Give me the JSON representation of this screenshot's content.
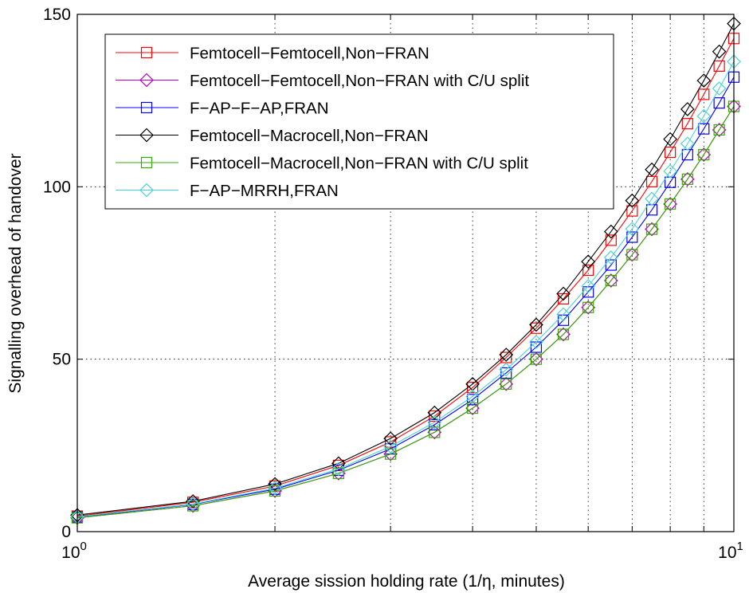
{
  "chart_data": {
    "type": "line",
    "title": "",
    "xlabel": "Average sission holding rate (1/η, minutes)",
    "ylabel": "Signalling overhead of handover",
    "x_scale": "log",
    "xlim": [
      1,
      10
    ],
    "ylim": [
      0,
      150
    ],
    "x_tick_labels": [
      {
        "base": "10",
        "exp": "0"
      },
      {
        "base": "10",
        "exp": "1"
      }
    ],
    "y_ticks": [
      0,
      50,
      100,
      150
    ],
    "y_tick_labels": [
      "0",
      "50",
      "100",
      "150"
    ],
    "grid": true,
    "legend_position": "top-left",
    "x": [
      1,
      1.5,
      2,
      2.5,
      3,
      3.5,
      4,
      4.5,
      5,
      5.5,
      6,
      6.5,
      7,
      7.5,
      8,
      8.5,
      9,
      9.5,
      10
    ],
    "series": [
      {
        "name": "Femtocell−Femtocell,Non−FRAN",
        "color": "#ff0000",
        "marker": "square",
        "values": [
          4.5,
          8.5,
          13.2,
          19.2,
          26.0,
          33.5,
          41.8,
          50.5,
          59.0,
          67.5,
          75.8,
          84.5,
          93.0,
          101.5,
          110.0,
          118.3,
          126.8,
          135.0,
          143.0
        ]
      },
      {
        "name": "Femtocell−Femtocell,Non−FRAN with C/U split",
        "color": "#bf00bf",
        "marker": "diamond",
        "values": [
          4.0,
          7.5,
          11.8,
          16.9,
          22.5,
          28.8,
          35.8,
          42.8,
          50.0,
          57.2,
          65.0,
          72.8,
          80.3,
          87.7,
          95.0,
          102.2,
          109.3,
          116.5,
          123.3
        ]
      },
      {
        "name": "F−AP−F−AP,FRAN",
        "color": "#0000ff",
        "marker": "square",
        "values": [
          4.2,
          7.9,
          12.3,
          17.8,
          24.0,
          31.0,
          38.3,
          46.0,
          53.5,
          61.3,
          69.5,
          77.3,
          85.4,
          93.3,
          101.3,
          109.3,
          116.8,
          124.3,
          131.8
        ]
      },
      {
        "name": "Femtocell−Macrocell,Non−FRAN",
        "color": "#000000",
        "marker": "diamond",
        "values": [
          4.8,
          8.8,
          13.8,
          19.8,
          27.0,
          34.5,
          42.8,
          51.3,
          60.0,
          69.0,
          78.3,
          87.0,
          96.0,
          105.0,
          113.8,
          122.5,
          130.8,
          139.2,
          147.3
        ]
      },
      {
        "name": "Femtocell−Macrocell,Non−FRAN with C/U split",
        "color": "#33aa00",
        "marker": "square",
        "values": [
          4.0,
          7.5,
          11.8,
          16.9,
          22.5,
          28.8,
          35.8,
          42.8,
          50.0,
          57.2,
          65.0,
          72.8,
          80.3,
          87.7,
          95.0,
          102.2,
          109.3,
          116.5,
          123.3
        ]
      },
      {
        "name": "F−AP−MRRH,FRAN",
        "color": "#4cd3d3",
        "marker": "diamond",
        "values": [
          4.3,
          8.0,
          12.6,
          18.2,
          24.7,
          31.7,
          39.2,
          47.0,
          55.0,
          63.0,
          71.2,
          79.5,
          87.8,
          96.5,
          104.5,
          112.5,
          120.5,
          128.5,
          136.3
        ]
      }
    ]
  }
}
